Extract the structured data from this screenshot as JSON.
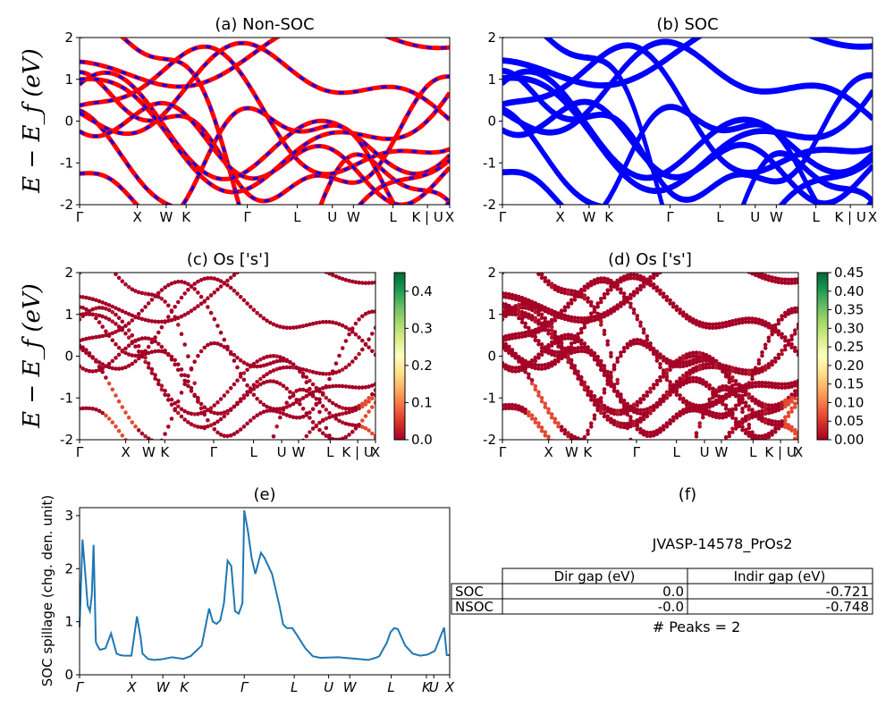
{
  "figure": {
    "ylabel_top": "E − E_f (eV)",
    "ylabel_mid": "E − E_f (eV)"
  },
  "chart_data": [
    {
      "id": "a",
      "type": "line",
      "title": "(a) Non-SOC",
      "ylim": [
        -2,
        2
      ],
      "yticks": [
        -2,
        -1,
        0,
        1,
        2
      ],
      "xtick_labels": [
        "Γ",
        "X",
        "W",
        "K",
        "Γ",
        "L",
        "U",
        "W",
        "L",
        "K | U",
        "X"
      ],
      "series_colors": [
        "#ff0000",
        "#0000ff"
      ],
      "description_of_bands": "spin-up (red) and spin-down (blue, dashed) bands overlapping"
    },
    {
      "id": "b",
      "type": "line",
      "title": "(b) SOC",
      "ylim": [
        -2,
        2
      ],
      "yticks": [
        -2,
        -1,
        0,
        1,
        2
      ],
      "xtick_labels": [
        "Γ",
        "X",
        "W",
        "K",
        "Γ",
        "L",
        "U",
        "W",
        "L",
        "K | U",
        "X"
      ],
      "series_colors": [
        "#0000ff"
      ]
    },
    {
      "id": "c",
      "type": "scatter",
      "title": "(c)  Os ['s']",
      "ylim": [
        -2,
        2
      ],
      "yticks": [
        -2,
        -1,
        0,
        1,
        2
      ],
      "xtick_labels": [
        "Γ",
        "X",
        "W",
        "K",
        "Γ",
        "L",
        "U",
        "W",
        "L",
        "K | U",
        "X"
      ],
      "colorbar": {
        "ticks": [
          "0.0",
          "0.1",
          "0.2",
          "0.3",
          "0.4"
        ],
        "range": [
          0,
          0.45
        ],
        "colormap": "RdYlGn"
      }
    },
    {
      "id": "d",
      "type": "scatter",
      "title": "(d) Os ['s']",
      "ylim": [
        -2,
        2
      ],
      "yticks": [
        -2,
        -1,
        0,
        1,
        2
      ],
      "xtick_labels": [
        "Γ",
        "X",
        "W",
        "K",
        "Γ",
        "L",
        "U",
        "W",
        "L",
        "K | U",
        "X"
      ],
      "colorbar": {
        "ticks": [
          "0.00",
          "0.05",
          "0.10",
          "0.15",
          "0.20",
          "0.25",
          "0.30",
          "0.35",
          "0.40",
          "0.45"
        ],
        "range": [
          0,
          0.45
        ],
        "colormap": "RdYlGn"
      }
    },
    {
      "id": "e",
      "type": "line",
      "title": "(e)",
      "ylabel": "SOC spillage (chg. den. unit)",
      "ylim": [
        0,
        3.15
      ],
      "yticks": [
        0,
        1,
        2,
        3
      ],
      "xtick_labels": [
        "Γ",
        "X",
        "W",
        "K",
        "Γ",
        "L",
        "U",
        "W",
        "L",
        "K",
        "U",
        "X"
      ],
      "color": "#1f77b4",
      "x": [
        0.0,
        0.008,
        0.015,
        0.022,
        0.028,
        0.033,
        0.038,
        0.044,
        0.048,
        0.055,
        0.07,
        0.085,
        0.1,
        0.11,
        0.12,
        0.14,
        0.155,
        0.165,
        0.17,
        0.185,
        0.2,
        0.22,
        0.25,
        0.28,
        0.3,
        0.33,
        0.35,
        0.36,
        0.37,
        0.38,
        0.39,
        0.4,
        0.41,
        0.42,
        0.43,
        0.44,
        0.445,
        0.455,
        0.465,
        0.475,
        0.49,
        0.5,
        0.52,
        0.54,
        0.55,
        0.56,
        0.575,
        0.59,
        0.61,
        0.63,
        0.65,
        0.7,
        0.75,
        0.78,
        0.8,
        0.81,
        0.82,
        0.83,
        0.84,
        0.85,
        0.86,
        0.87,
        0.88,
        0.9,
        0.92,
        0.94,
        0.96,
        0.975,
        0.985,
        0.992,
        1.0
      ],
      "values": [
        0.9,
        2.55,
        1.95,
        1.3,
        1.2,
        1.5,
        2.45,
        0.62,
        0.55,
        0.47,
        0.5,
        0.78,
        0.4,
        0.37,
        0.36,
        0.36,
        1.1,
        0.7,
        0.4,
        0.3,
        0.28,
        0.29,
        0.33,
        0.3,
        0.35,
        0.55,
        1.25,
        1.0,
        0.96,
        1.02,
        1.35,
        2.15,
        2.05,
        1.2,
        1.15,
        1.35,
        3.1,
        2.7,
        2.2,
        1.9,
        2.3,
        2.2,
        1.9,
        1.3,
        0.95,
        0.88,
        0.88,
        0.72,
        0.5,
        0.35,
        0.32,
        0.33,
        0.3,
        0.28,
        0.32,
        0.35,
        0.48,
        0.6,
        0.8,
        0.88,
        0.86,
        0.7,
        0.55,
        0.4,
        0.36,
        0.38,
        0.45,
        0.72,
        0.89,
        0.37,
        0.37
      ]
    }
  ],
  "panel_f": {
    "title": "(f)",
    "name": "JVASP-14578_PrOs2",
    "table": {
      "columns": [
        "Dir gap (eV)",
        "Indir gap (eV)"
      ],
      "rows": [
        {
          "label": "SOC",
          "dir": "0.0",
          "indir": "-0.721"
        },
        {
          "label": "NSOC",
          "dir": "-0.0",
          "indir": "-0.748"
        }
      ]
    },
    "peaks": "# Peaks = 2"
  }
}
